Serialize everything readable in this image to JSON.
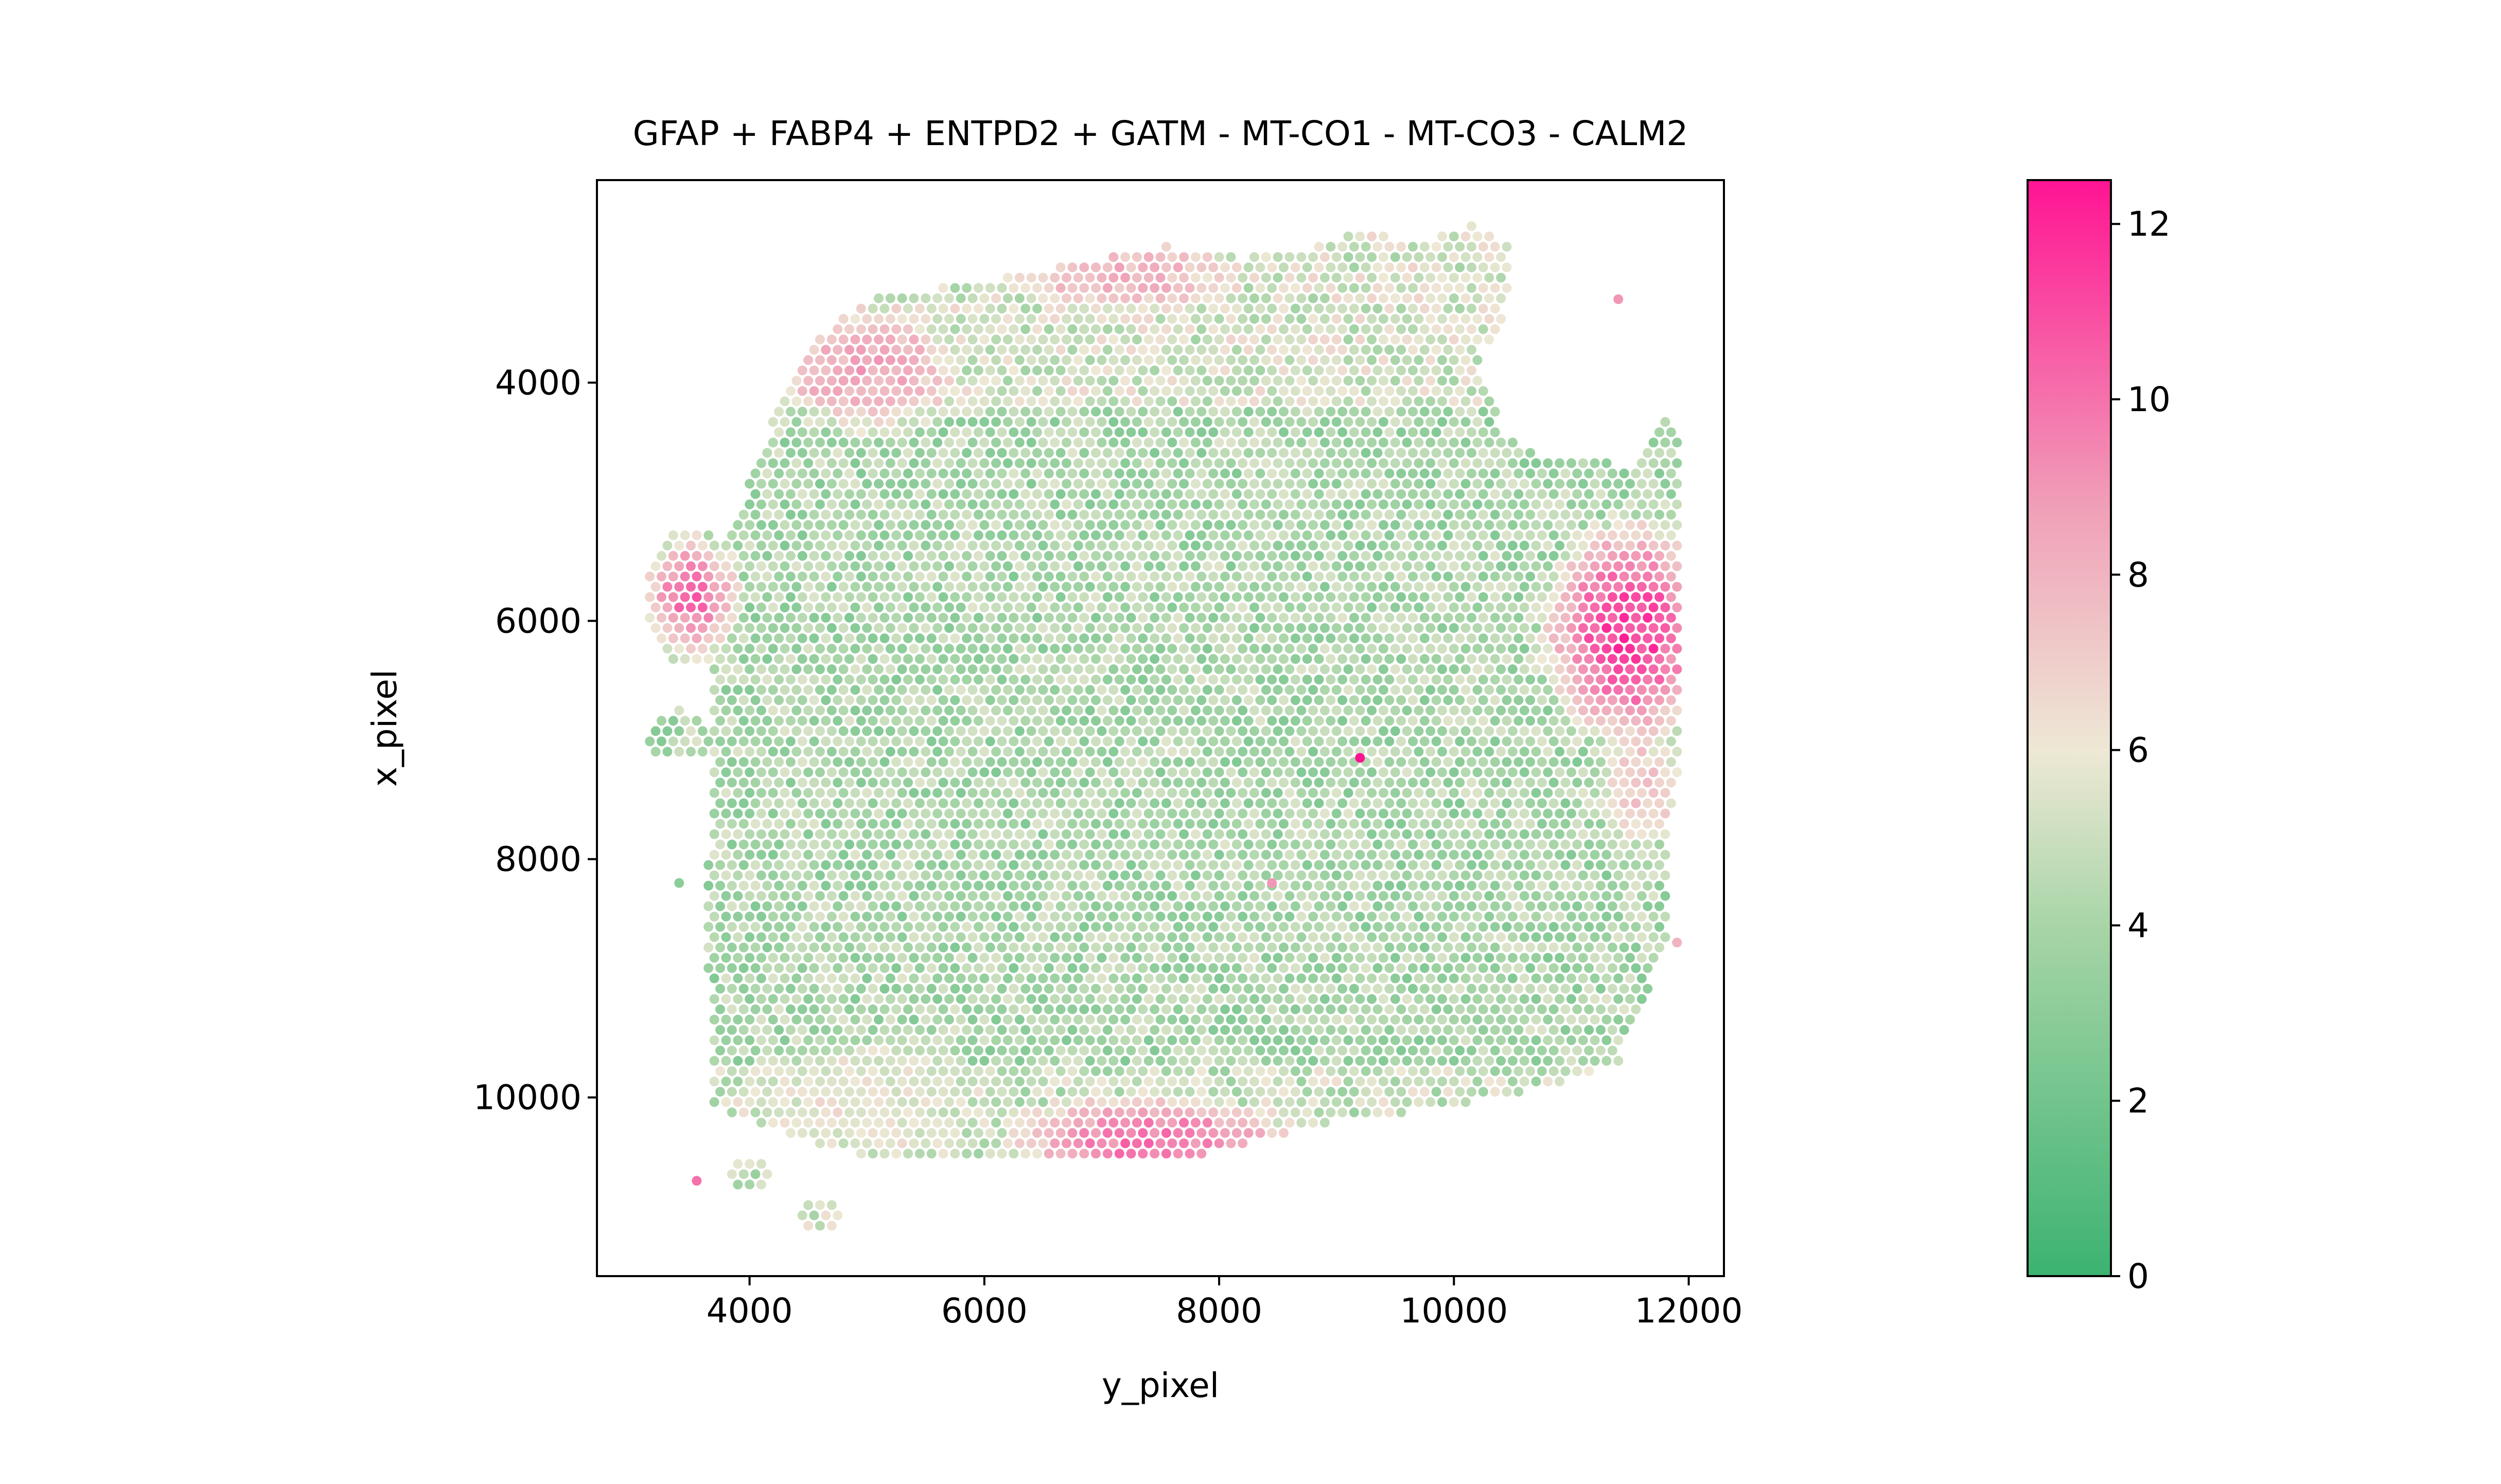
{
  "chart_data": {
    "type": "scatter",
    "title": "GFAP + FABP4 + ENTPD2 + GATM - MT-CO1 - MT-CO3 - CALM2",
    "xlabel": "y_pixel",
    "ylabel": "x_pixel",
    "xlim": [
      2700,
      12300
    ],
    "ylim": [
      11500,
      2300
    ],
    "y_inverted": true,
    "xticks": [
      4000,
      6000,
      8000,
      10000,
      12000
    ],
    "xtick_labels": [
      "4000",
      "6000",
      "8000",
      "10000",
      "12000"
    ],
    "yticks": [
      4000,
      6000,
      8000,
      10000
    ],
    "ytick_labels": [
      "4000",
      "6000",
      "8000",
      "10000"
    ],
    "grid": false,
    "colorbar": {
      "min": 0,
      "max": 12.5,
      "ticks": [
        0,
        2,
        4,
        6,
        8,
        10,
        12
      ],
      "tick_labels": [
        "0",
        "2",
        "4",
        "6",
        "8",
        "10",
        "12"
      ],
      "colormap_stops": [
        "#3cb371",
        "#a8d5a8",
        "#eee8d5",
        "#f0a0b8",
        "#ff1493"
      ]
    },
    "series": [
      {
        "type": "spots",
        "note_points": [
          {
            "x": 11400,
            "y": 3300,
            "v": 9
          },
          {
            "x": 9200,
            "y": 7150,
            "v": 12.5
          },
          {
            "x": 3550,
            "y": 10700,
            "v": 10
          },
          {
            "x": 3400,
            "y": 8200,
            "v": 3
          },
          {
            "x": 11900,
            "y": 8700,
            "v": 8
          },
          {
            "x": 8450,
            "y": 8200,
            "v": 9
          }
        ],
        "tissue_outline": [
          [
            4500,
            3700
          ],
          [
            5000,
            3300
          ],
          [
            6000,
            3150
          ],
          [
            6800,
            3000
          ],
          [
            7500,
            2850
          ],
          [
            8200,
            2950
          ],
          [
            8700,
            2900
          ],
          [
            9100,
            2750
          ],
          [
            9800,
            2800
          ],
          [
            10200,
            2650
          ],
          [
            10500,
            2900
          ],
          [
            10400,
            3600
          ],
          [
            10200,
            3750
          ],
          [
            10400,
            4400
          ],
          [
            10700,
            4600
          ],
          [
            11500,
            4700
          ],
          [
            11750,
            4250
          ],
          [
            11950,
            4500
          ],
          [
            11950,
            6000
          ],
          [
            11950,
            7000
          ],
          [
            11800,
            8000
          ],
          [
            11850,
            8700
          ],
          [
            11600,
            9200
          ],
          [
            11400,
            9700
          ],
          [
            10800,
            9900
          ],
          [
            10400,
            10000
          ],
          [
            9800,
            10100
          ],
          [
            9000,
            10200
          ],
          [
            8200,
            10400
          ],
          [
            7500,
            10550
          ],
          [
            6200,
            10500
          ],
          [
            5000,
            10500
          ],
          [
            4300,
            10300
          ],
          [
            3700,
            10100
          ],
          [
            3650,
            9000
          ],
          [
            3650,
            8000
          ],
          [
            3700,
            7000
          ],
          [
            3700,
            6000
          ],
          [
            3800,
            5300
          ],
          [
            4100,
            4600
          ],
          [
            4300,
            4000
          ]
        ],
        "left_clusters": [
          {
            "cx": 3500,
            "cy": 5800,
            "rx": 400,
            "ry": 600
          },
          {
            "cx": 3400,
            "cy": 6950,
            "rx": 300,
            "ry": 200
          },
          {
            "cx": 4000,
            "cy": 10650,
            "rx": 200,
            "ry": 120
          },
          {
            "cx": 4600,
            "cy": 11000,
            "rx": 220,
            "ry": 130
          }
        ],
        "hotspots": [
          {
            "cx": 11500,
            "cy": 6100,
            "rx": 700,
            "ry": 900,
            "v": 11.5
          },
          {
            "cx": 7400,
            "cy": 10350,
            "rx": 1100,
            "ry": 350,
            "v": 10
          },
          {
            "cx": 5000,
            "cy": 3900,
            "rx": 700,
            "ry": 500,
            "v": 8.5
          },
          {
            "cx": 3500,
            "cy": 5800,
            "rx": 400,
            "ry": 500,
            "v": 10
          },
          {
            "cx": 11600,
            "cy": 7400,
            "rx": 350,
            "ry": 500,
            "v": 7.5
          },
          {
            "cx": 7200,
            "cy": 3100,
            "rx": 900,
            "ry": 300,
            "v": 8
          },
          {
            "cx": 5000,
            "cy": 10000,
            "rx": 900,
            "ry": 500,
            "v": 6
          }
        ]
      }
    ]
  }
}
